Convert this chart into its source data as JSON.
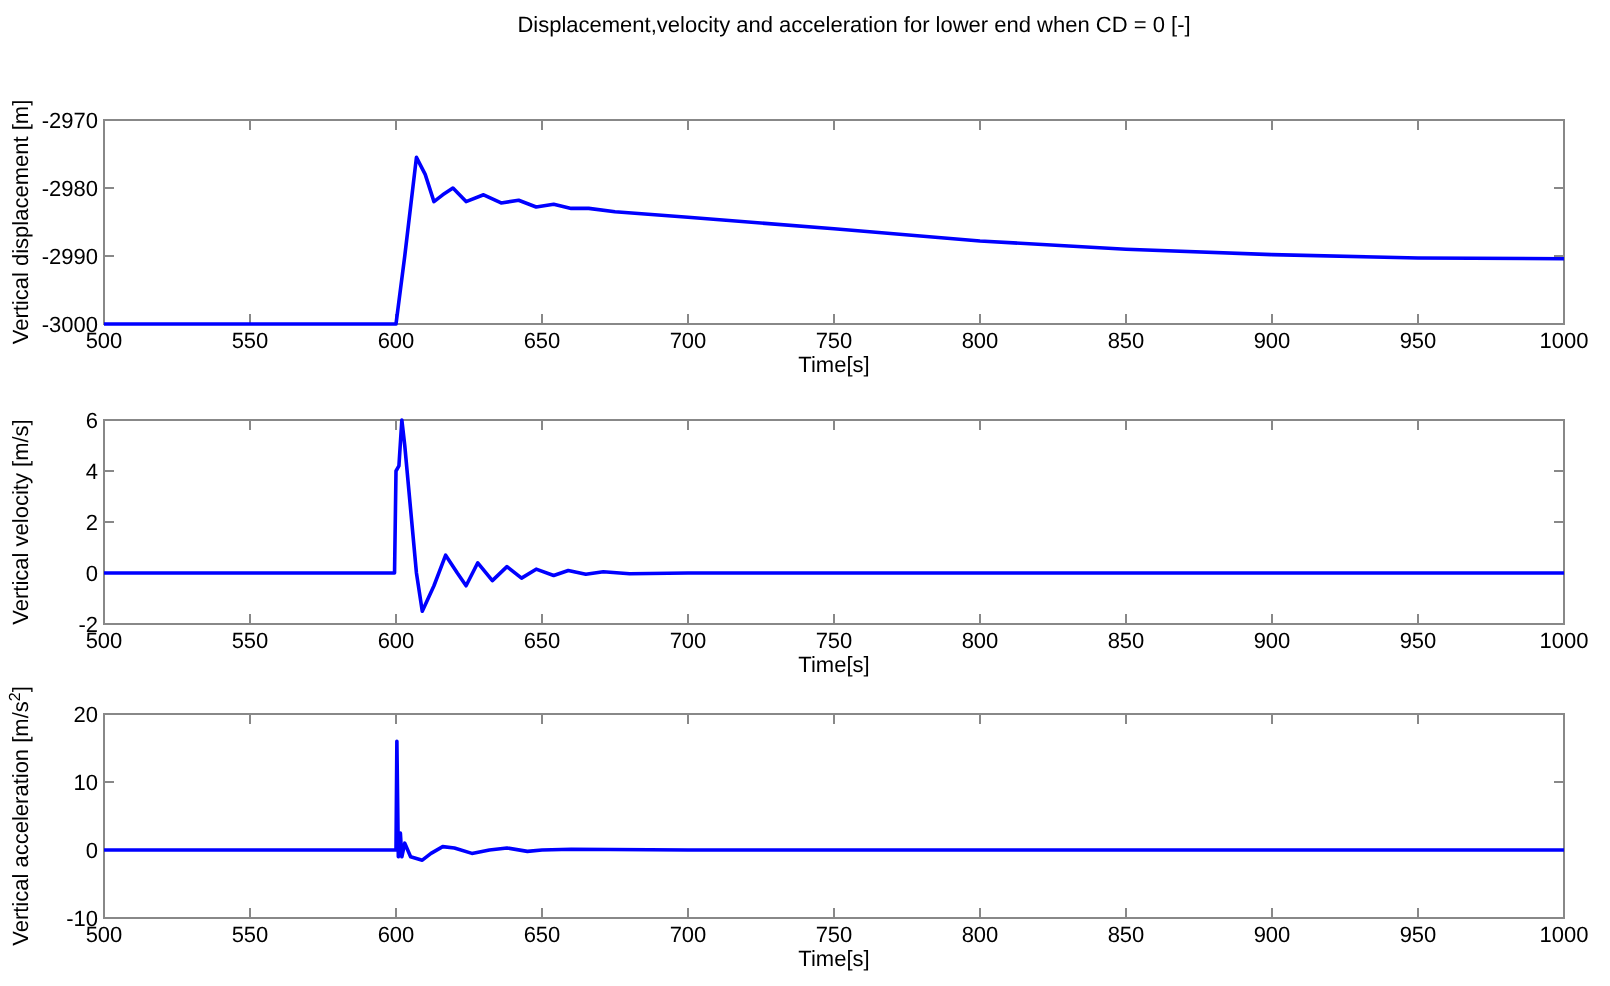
{
  "chart_data": [
    {
      "type": "line",
      "title": "Displacement,velocity and acceleration for lower end when CD = 0 [-]",
      "xlabel": "Time[s]",
      "ylabel": "Vertical displacement [m]",
      "xlim": [
        500,
        1000
      ],
      "ylim": [
        -3000,
        -2970
      ],
      "xticks": [
        500,
        550,
        600,
        650,
        700,
        750,
        800,
        850,
        900,
        950,
        1000
      ],
      "yticks": [
        -3000,
        -2990,
        -2980,
        -2970
      ],
      "series": [
        {
          "color": "#0000ff",
          "x": [
            500,
            600,
            603,
            607,
            610,
            613,
            616,
            619.5,
            624,
            630,
            636,
            642,
            648,
            654,
            660,
            666,
            675,
            700,
            750,
            800,
            850,
            900,
            950,
            1000
          ],
          "values": [
            -3000,
            -3000,
            -2990,
            -2975.5,
            -2978,
            -2982,
            -2981,
            -2980,
            -2982,
            -2981,
            -2982.2,
            -2981.8,
            -2982.8,
            -2982.4,
            -2983,
            -2983,
            -2983.5,
            -2984.3,
            -2986,
            -2987.8,
            -2989,
            -2989.8,
            -2990.3,
            -2990.4
          ]
        }
      ]
    },
    {
      "type": "line",
      "xlabel": "Time[s]",
      "ylabel": "Vertical velocity [m/s]",
      "xlim": [
        500,
        1000
      ],
      "ylim": [
        -2,
        6
      ],
      "xticks": [
        500,
        550,
        600,
        650,
        700,
        750,
        800,
        850,
        900,
        950,
        1000
      ],
      "yticks": [
        -2,
        0,
        2,
        4,
        6
      ],
      "series": [
        {
          "color": "#0000ff",
          "x": [
            500,
            599.5,
            600,
            601,
            602,
            603,
            607,
            609,
            613,
            617,
            621,
            624,
            628,
            633,
            638,
            643,
            648,
            654,
            659,
            665,
            671,
            680,
            700,
            1000
          ],
          "values": [
            0,
            0,
            4,
            4.2,
            6,
            5,
            0,
            -1.5,
            -0.5,
            0.7,
            0,
            -0.5,
            0.4,
            -0.3,
            0.25,
            -0.2,
            0.15,
            -0.1,
            0.1,
            -0.05,
            0.05,
            -0.03,
            0,
            0
          ]
        }
      ]
    },
    {
      "type": "line",
      "xlabel": "Time[s]",
      "ylabel": "Vertical acceleration [m/s$^{2}$]",
      "xlim": [
        500,
        1000
      ],
      "ylim": [
        -10,
        20
      ],
      "xticks": [
        500,
        550,
        600,
        650,
        700,
        750,
        800,
        850,
        900,
        950,
        1000
      ],
      "yticks": [
        -10,
        0,
        10,
        20
      ],
      "series": [
        {
          "color": "#0000ff",
          "x": [
            500,
            600,
            600.3,
            600.8,
            601.5,
            602,
            603,
            605,
            609,
            612,
            616,
            620,
            626,
            632,
            638,
            645,
            650,
            660,
            700,
            1000
          ],
          "values": [
            0,
            0,
            16,
            -1,
            2.5,
            -1,
            1,
            -1,
            -1.5,
            -0.5,
            0.5,
            0.3,
            -0.5,
            0,
            0.3,
            -0.2,
            0,
            0.1,
            0,
            0
          ]
        }
      ]
    }
  ]
}
